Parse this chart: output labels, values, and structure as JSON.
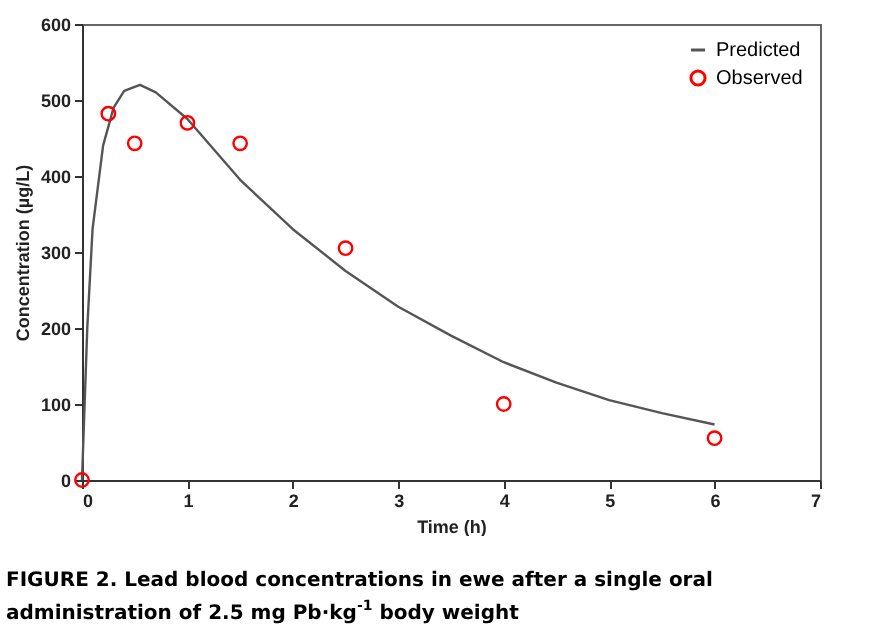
{
  "chart_data": {
    "type": "scatter",
    "xlabel": "Time (h)",
    "ylabel": "Concentration (µg/L)",
    "annotations": [
      "FIGURE 2. Lead blood concentrations in ewe after a single oral administration of 2.5 mg Pb·kg$^{-1}$ body weight"
    ],
    "xlim": [
      0,
      7
    ],
    "xticks": [
      0,
      1,
      2,
      3,
      4,
      5,
      6,
      7
    ],
    "ylim": [
      0,
      600
    ],
    "yticks": [
      0,
      100,
      200,
      300,
      400,
      500,
      600
    ],
    "grid": false,
    "legend": "top right",
    "series": [
      {
        "name": "Predicted",
        "type": "line",
        "color": "#555555",
        "line_style": "solid",
        "x": [
          0,
          0.05,
          0.1,
          0.2,
          0.3,
          0.4,
          0.55,
          0.7,
          1,
          1.5,
          2,
          2.5,
          3,
          3.5,
          4,
          4.5,
          5,
          5.5,
          6
        ],
        "values": [
          0,
          200,
          330,
          440,
          490,
          512,
          520,
          510,
          475,
          395,
          330,
          275,
          228,
          190,
          155,
          128,
          105,
          88,
          73
        ]
      },
      {
        "name": "Observed",
        "color": "#ff0000",
        "marker": "circle",
        "x": [
          0,
          0.25,
          0.5,
          1,
          1.5,
          2.5,
          4,
          6
        ],
        "values": [
          0,
          482,
          443,
          470,
          443,
          305,
          100,
          55
        ]
      }
    ]
  }
}
